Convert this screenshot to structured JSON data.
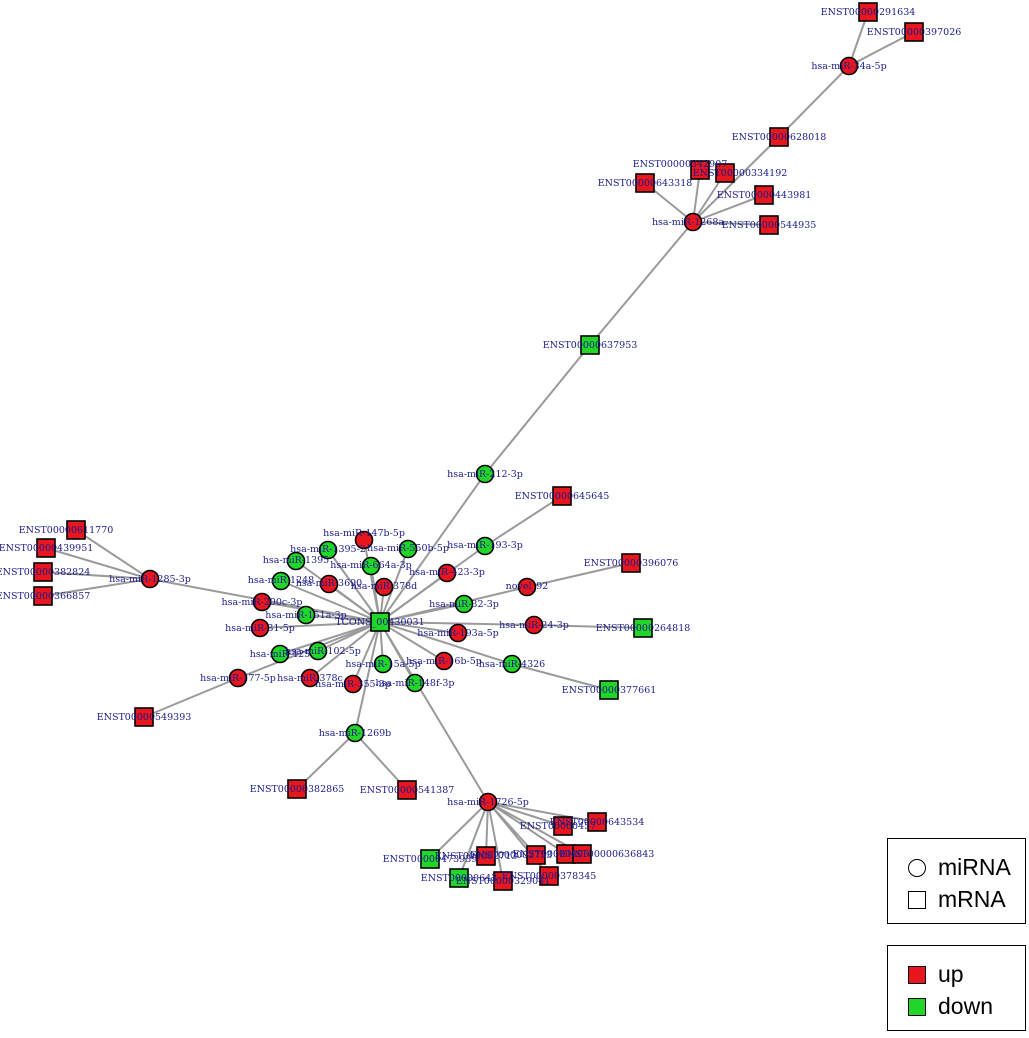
{
  "colors": {
    "up": "#e8161d",
    "down": "#22d628",
    "edge": "#9a9a9a",
    "label": "#1a1a8c"
  },
  "legend_shape": {
    "circle_label": "miRNA",
    "square_label": "mRNA"
  },
  "legend_color": {
    "up_label": "up",
    "down_label": "down"
  },
  "network": {
    "nodes": [
      {
        "id": "hub",
        "label": "TCONS_00430031",
        "shape": "square",
        "reg": "down"
      },
      {
        "id": "n_291634",
        "label": "ENST00000291634",
        "shape": "square",
        "reg": "up"
      },
      {
        "id": "n_397026",
        "label": "ENST00000397026",
        "shape": "square",
        "reg": "up"
      },
      {
        "id": "m_34a5p",
        "label": "hsa-miR-34a-5p",
        "shape": "circle",
        "reg": "up"
      },
      {
        "id": "n_628018",
        "label": "ENST00000628018",
        "shape": "square",
        "reg": "up"
      },
      {
        "id": "n_342907",
        "label": "ENST00000342907",
        "shape": "square",
        "reg": "up"
      },
      {
        "id": "n_334192",
        "label": "ENST00000334192",
        "shape": "square",
        "reg": "up"
      },
      {
        "id": "n_643318",
        "label": "ENST00000643318",
        "shape": "square",
        "reg": "up"
      },
      {
        "id": "n_443981",
        "label": "ENST00000443981",
        "shape": "square",
        "reg": "up"
      },
      {
        "id": "m_1268a",
        "label": "hsa-miR-1268a",
        "shape": "circle",
        "reg": "up"
      },
      {
        "id": "n_544935",
        "label": "ENST00000544935",
        "shape": "square",
        "reg": "up"
      },
      {
        "id": "n_637953",
        "label": "ENST00000637953",
        "shape": "square",
        "reg": "down"
      },
      {
        "id": "m_1123p",
        "label": "hsa-miR-212-3p",
        "shape": "circle",
        "reg": "down"
      },
      {
        "id": "n_645645",
        "label": "ENST00000645645",
        "shape": "square",
        "reg": "up"
      },
      {
        "id": "n_611770",
        "label": "ENST00000611770",
        "shape": "square",
        "reg": "up"
      },
      {
        "id": "n_439951",
        "label": "ENST00000439951",
        "shape": "square",
        "reg": "up"
      },
      {
        "id": "n_382824",
        "label": "ENST00000382824",
        "shape": "square",
        "reg": "up"
      },
      {
        "id": "n_366857",
        "label": "ENST00000366857",
        "shape": "square",
        "reg": "up"
      },
      {
        "id": "m_2853p",
        "label": "hsa-miR-1285-3p",
        "shape": "circle",
        "reg": "up"
      },
      {
        "id": "m_47b5p",
        "label": "hsa-miR-147b-5p",
        "shape": "circle",
        "reg": "up"
      },
      {
        "id": "m_13",
        "label": "hsa-miR-1395-2",
        "shape": "circle",
        "reg": "down"
      },
      {
        "id": "m_50b5p",
        "label": "hsa-miR-550b-5p",
        "shape": "circle",
        "reg": "down"
      },
      {
        "id": "m_1395",
        "label": "hsa-miR-1395",
        "shape": "circle",
        "reg": "down"
      },
      {
        "id": "m_64a3p",
        "label": "hsa-miR-664a-3p",
        "shape": "circle",
        "reg": "down"
      },
      {
        "id": "m_1248",
        "label": "hsa-miR-1248",
        "shape": "circle",
        "reg": "down"
      },
      {
        "id": "m_3690",
        "label": "hsa-miR-3690",
        "shape": "circle",
        "reg": "up"
      },
      {
        "id": "m_378d",
        "label": "hsa-miR-378d",
        "shape": "circle",
        "reg": "up"
      },
      {
        "id": "m_4233p",
        "label": "hsa-miR-423-3p",
        "shape": "circle",
        "reg": "up"
      },
      {
        "id": "m_933p",
        "label": "hsa-miR-193-3p",
        "shape": "circle",
        "reg": "down"
      },
      {
        "id": "n_396076",
        "label": "ENST00000396076",
        "shape": "square",
        "reg": "up"
      },
      {
        "id": "m_novel",
        "label": "novel_92",
        "shape": "circle",
        "reg": "up"
      },
      {
        "id": "m_00c3p",
        "label": "hsa-miR-200c-3p",
        "shape": "circle",
        "reg": "up"
      },
      {
        "id": "m_51a3p",
        "label": "hsa-miR-151a-3p",
        "shape": "circle",
        "reg": "down"
      },
      {
        "id": "m_323p",
        "label": "hsa-miR-32-3p",
        "shape": "circle",
        "reg": "down"
      },
      {
        "id": "m_315p",
        "label": "hsa-miR-31-5p",
        "shape": "circle",
        "reg": "up"
      },
      {
        "id": "m_243p",
        "label": "hsa-miR-24-3p",
        "shape": "circle",
        "reg": "up"
      },
      {
        "id": "n_264818",
        "label": "ENST00000264818",
        "shape": "square",
        "reg": "down"
      },
      {
        "id": "m_93a5p",
        "label": "hsa-miR-193a-5p",
        "shape": "circle",
        "reg": "up"
      },
      {
        "id": "m_425",
        "label": "hsa-miR-425",
        "shape": "circle",
        "reg": "down"
      },
      {
        "id": "m_1025p",
        "label": "hsa-miR-102-5p",
        "shape": "circle",
        "reg": "down"
      },
      {
        "id": "m_16b5p",
        "label": "hsa-miR-16b-5p",
        "shape": "circle",
        "reg": "up"
      },
      {
        "id": "m_4326",
        "label": "hsa-miR-4326",
        "shape": "circle",
        "reg": "down"
      },
      {
        "id": "m_15a",
        "label": "hsa-miR-15a-5p",
        "shape": "circle",
        "reg": "down"
      },
      {
        "id": "m_775p",
        "label": "hsa-miR-177-5p",
        "shape": "circle",
        "reg": "up"
      },
      {
        "id": "m_378c",
        "label": "hsa-miR-378c",
        "shape": "circle",
        "reg": "up"
      },
      {
        "id": "m_3553p",
        "label": "hsa-miR-355-3p",
        "shape": "circle",
        "reg": "up"
      },
      {
        "id": "m_48f3p",
        "label": "hsa-miR-148f-3p",
        "shape": "circle",
        "reg": "down"
      },
      {
        "id": "n_377661",
        "label": "ENST00000377661",
        "shape": "square",
        "reg": "down"
      },
      {
        "id": "n_549393",
        "label": "ENST00000549393",
        "shape": "square",
        "reg": "up"
      },
      {
        "id": "m_1269b",
        "label": "hsa-miR-1269b",
        "shape": "circle",
        "reg": "down"
      },
      {
        "id": "n_382865",
        "label": "ENST00000382865",
        "shape": "square",
        "reg": "up"
      },
      {
        "id": "n_541387",
        "label": "ENST00000541387",
        "shape": "square",
        "reg": "up"
      },
      {
        "id": "m_7265p",
        "label": "hsa-miR-1726-5p",
        "shape": "circle",
        "reg": "up"
      },
      {
        "id": "n_457",
        "label": "ENST00000457",
        "shape": "square",
        "reg": "up"
      },
      {
        "id": "n_643534",
        "label": "ENST00000643534",
        "shape": "square",
        "reg": "up"
      },
      {
        "id": "n_47393",
        "label": "ENST00000473939",
        "shape": "square",
        "reg": "down"
      },
      {
        "id": "n_a1",
        "label": "ENST000002713",
        "shape": "square",
        "reg": "up"
      },
      {
        "id": "n_a2",
        "label": "ENST000002753",
        "shape": "square",
        "reg": "up"
      },
      {
        "id": "n_a3",
        "label": "ENST00000405",
        "shape": "square",
        "reg": "up"
      },
      {
        "id": "n_636843",
        "label": "ENST00000636843",
        "shape": "square",
        "reg": "up"
      },
      {
        "id": "n_643",
        "label": "ENST00000643",
        "shape": "square",
        "reg": "down"
      },
      {
        "id": "n_32904",
        "label": "ENST00000329041",
        "shape": "square",
        "reg": "up"
      },
      {
        "id": "n_378345",
        "label": "ENST00000378345",
        "shape": "square",
        "reg": "up"
      }
    ],
    "edges": [
      [
        "n_291634",
        "m_34a5p"
      ],
      [
        "n_397026",
        "m_34a5p"
      ],
      [
        "m_34a5p",
        "n_628018"
      ],
      [
        "n_628018",
        "m_1268a"
      ],
      [
        "n_342907",
        "m_1268a"
      ],
      [
        "n_334192",
        "m_1268a"
      ],
      [
        "n_643318",
        "m_1268a"
      ],
      [
        "n_443981",
        "m_1268a"
      ],
      [
        "n_544935",
        "m_1268a"
      ],
      [
        "m_1268a",
        "n_637953"
      ],
      [
        "n_637953",
        "m_1123p"
      ],
      [
        "m_1123p",
        "hub"
      ],
      [
        "n_645645",
        "m_933p"
      ],
      [
        "m_933p",
        "hub"
      ],
      [
        "n_611770",
        "m_2853p"
      ],
      [
        "n_439951",
        "m_2853p"
      ],
      [
        "n_382824",
        "m_2853p"
      ],
      [
        "n_366857",
        "m_2853p"
      ],
      [
        "m_2853p",
        "hub"
      ],
      [
        "m_47b5p",
        "hub"
      ],
      [
        "m_13",
        "hub"
      ],
      [
        "m_50b5p",
        "hub"
      ],
      [
        "m_1395",
        "hub"
      ],
      [
        "m_64a3p",
        "hub"
      ],
      [
        "m_1248",
        "hub"
      ],
      [
        "m_3690",
        "hub"
      ],
      [
        "m_378d",
        "hub"
      ],
      [
        "m_4233p",
        "hub"
      ],
      [
        "n_396076",
        "m_novel"
      ],
      [
        "m_novel",
        "hub"
      ],
      [
        "m_00c3p",
        "hub"
      ],
      [
        "m_51a3p",
        "hub"
      ],
      [
        "m_323p",
        "hub"
      ],
      [
        "m_315p",
        "hub"
      ],
      [
        "n_264818",
        "m_243p"
      ],
      [
        "m_243p",
        "hub"
      ],
      [
        "m_93a5p",
        "hub"
      ],
      [
        "m_425",
        "hub"
      ],
      [
        "m_1025p",
        "hub"
      ],
      [
        "m_16b5p",
        "hub"
      ],
      [
        "n_377661",
        "m_4326"
      ],
      [
        "m_4326",
        "hub"
      ],
      [
        "m_15a",
        "hub"
      ],
      [
        "n_549393",
        "m_775p"
      ],
      [
        "m_775p",
        "hub"
      ],
      [
        "m_378c",
        "hub"
      ],
      [
        "m_3553p",
        "hub"
      ],
      [
        "m_48f3p",
        "hub"
      ],
      [
        "n_382865",
        "m_1269b"
      ],
      [
        "n_541387",
        "m_1269b"
      ],
      [
        "m_1269b",
        "hub"
      ],
      [
        "m_7265p",
        "hub"
      ],
      [
        "m_7265p",
        "n_457"
      ],
      [
        "m_7265p",
        "n_643534"
      ],
      [
        "m_7265p",
        "n_47393"
      ],
      [
        "m_7265p",
        "n_a1"
      ],
      [
        "m_7265p",
        "n_a2"
      ],
      [
        "m_7265p",
        "n_a3"
      ],
      [
        "m_7265p",
        "n_636843"
      ],
      [
        "m_7265p",
        "n_643"
      ],
      [
        "m_7265p",
        "n_32904"
      ],
      [
        "m_7265p",
        "n_378345"
      ]
    ]
  }
}
